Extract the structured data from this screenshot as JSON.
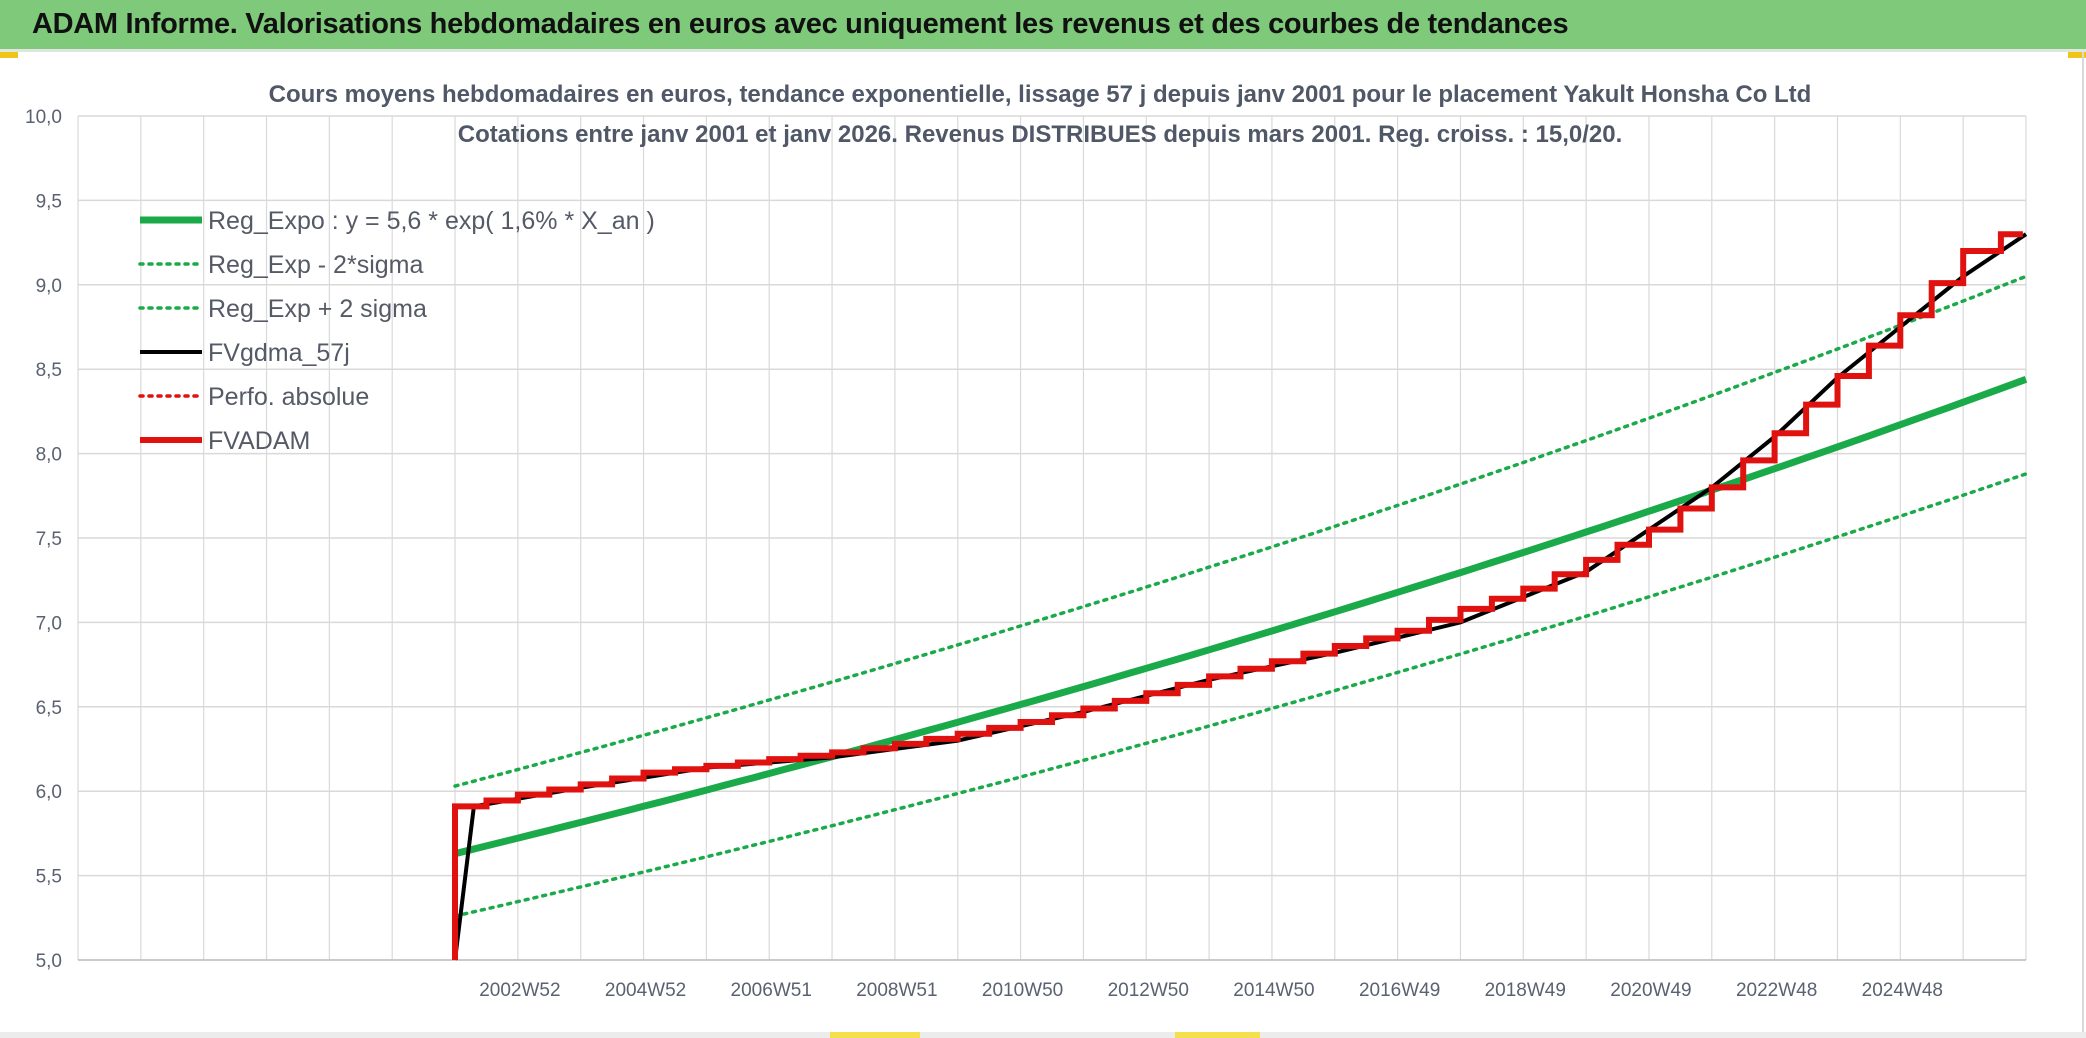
{
  "header": {
    "title": "ADAM Informe. Valorisations hebdomadaires en euros avec uniquement les revenus et des courbes de tendances"
  },
  "colors": {
    "header_bg": "#7fc97a",
    "reg_green": "#1aaa4a",
    "fv_black": "#000000",
    "fvadam_red": "#e0120f",
    "grid": "#d9d9d9"
  },
  "chart_data": {
    "type": "line",
    "title": "Cours moyens hebdomadaires en euros, tendance exponentielle, lissage 57 j depuis janv 2001 pour le placement Yakult Honsha Co Ltd",
    "subtitle": "Cotations entre janv 2001 et janv 2026. Revenus DISTRIBUES depuis mars 2001. Reg. croiss. : 15,0/20.",
    "xlabel": "",
    "ylabel": "",
    "ylim": [
      5.0,
      10.0
    ],
    "xlim": [
      1995.0,
      2026.0
    ],
    "yticks": [
      "5,0",
      "5,5",
      "6,0",
      "6,5",
      "7,0",
      "7,5",
      "8,0",
      "8,5",
      "9,0",
      "9,5",
      "10,0"
    ],
    "xticks": [
      {
        "x": 2002.0,
        "label": "2002W52"
      },
      {
        "x": 2004.0,
        "label": "2004W52"
      },
      {
        "x": 2006.0,
        "label": "2006W51"
      },
      {
        "x": 2008.0,
        "label": "2008W51"
      },
      {
        "x": 2010.0,
        "label": "2010W50"
      },
      {
        "x": 2012.0,
        "label": "2012W50"
      },
      {
        "x": 2014.0,
        "label": "2014W50"
      },
      {
        "x": 2016.0,
        "label": "2016W49"
      },
      {
        "x": 2018.0,
        "label": "2018W49"
      },
      {
        "x": 2020.0,
        "label": "2020W49"
      },
      {
        "x": 2022.0,
        "label": "2022W48"
      },
      {
        "x": 2024.0,
        "label": "2024W48"
      }
    ],
    "legend_position": "top-left",
    "series": [
      {
        "name": "Reg_Expo : y = 5,6 * exp( 1,6% *  X_an )",
        "style": "solid-thick",
        "color": "#1aaa4a",
        "x": [
          2001.0,
          2026.0
        ],
        "values": [
          5.63,
          8.44
        ],
        "model": "exponential"
      },
      {
        "name": "Reg_Exp - 2*sigma",
        "style": "dotted",
        "color": "#1aaa4a",
        "x": [
          2001.0,
          2026.0
        ],
        "values": [
          5.26,
          7.88
        ],
        "model": "exponential"
      },
      {
        "name": "Reg_Exp + 2 sigma",
        "style": "dotted",
        "color": "#1aaa4a",
        "x": [
          2001.0,
          2026.0
        ],
        "values": [
          6.03,
          9.05
        ],
        "model": "exponential"
      },
      {
        "name": "FVgdma_57j",
        "style": "solid",
        "color": "#000000",
        "x": [
          2001.0,
          2001.3,
          2003.0,
          2005.0,
          2007.0,
          2009.0,
          2011.0,
          2013.0,
          2015.0,
          2017.0,
          2019.0,
          2021.0,
          2022.0,
          2023.0,
          2024.0,
          2025.0,
          2026.0
        ],
        "values": [
          5.0,
          5.91,
          6.02,
          6.14,
          6.2,
          6.3,
          6.47,
          6.66,
          6.82,
          7.0,
          7.3,
          7.8,
          8.1,
          8.45,
          8.75,
          9.05,
          9.3
        ]
      },
      {
        "name": "Perfo. absolue",
        "style": "dotted",
        "color": "#e0120f",
        "x": [],
        "values": []
      },
      {
        "name": "FVADAM",
        "style": "step-thick",
        "color": "#e0120f",
        "x": [
          2001.0,
          2001.0,
          2002.0,
          2003.0,
          2004.0,
          2005.0,
          2006.0,
          2007.0,
          2008.0,
          2009.0,
          2010.0,
          2011.0,
          2012.0,
          2013.0,
          2014.0,
          2015.0,
          2016.0,
          2017.0,
          2018.0,
          2019.0,
          2020.0,
          2021.0,
          2022.0,
          2023.0,
          2024.0,
          2025.0
        ],
        "values": [
          5.0,
          5.91,
          5.98,
          6.04,
          6.11,
          6.15,
          6.19,
          6.23,
          6.28,
          6.34,
          6.41,
          6.49,
          6.58,
          6.68,
          6.77,
          6.86,
          6.95,
          7.08,
          7.2,
          7.37,
          7.55,
          7.8,
          8.12,
          8.46,
          8.82,
          9.2
        ]
      }
    ]
  }
}
